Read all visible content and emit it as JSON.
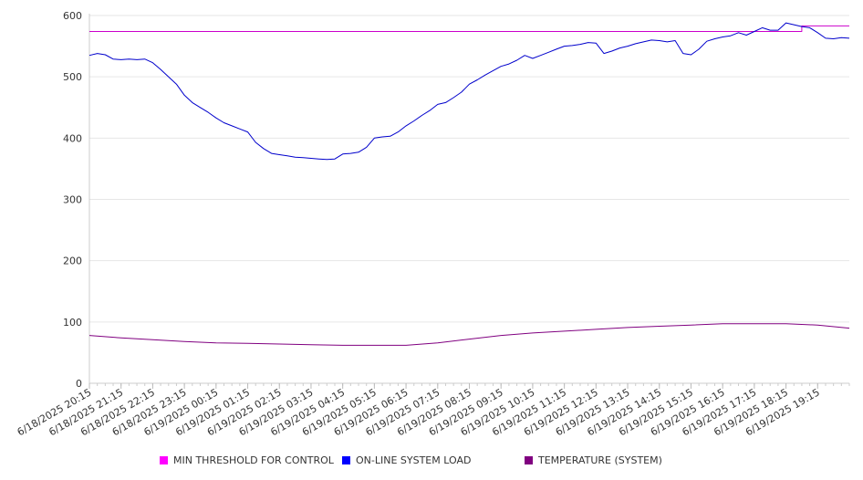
{
  "chart_data": {
    "type": "line",
    "title": "",
    "xlabel": "",
    "ylabel": "",
    "ylim": [
      0,
      600
    ],
    "y_ticks": [
      0,
      100,
      200,
      300,
      400,
      500,
      600
    ],
    "grid": "horizontal",
    "x_tick_labels": [
      "6/18/2025 20:15",
      "6/18/2025 21:15",
      "6/18/2025 22:15",
      "6/18/2025 23:15",
      "6/19/2025 00:15",
      "6/19/2025 01:15",
      "6/19/2025 02:15",
      "6/19/2025 03:15",
      "6/19/2025 04:15",
      "6/19/2025 05:15",
      "6/19/2025 06:15",
      "6/19/2025 07:15",
      "6/19/2025 08:15",
      "6/19/2025 09:15",
      "6/19/2025 10:15",
      "6/19/2025 11:15",
      "6/19/2025 12:15",
      "6/19/2025 13:15",
      "6/19/2025 14:15",
      "6/19/2025 15:15",
      "6/19/2025 16:15",
      "6/19/2025 17:15",
      "6/19/2025 18:15",
      "6/19/2025 19:15"
    ],
    "x_range": [
      "6/18/2025 20:15",
      "6/19/2025 20:15"
    ],
    "legend_position": "bottom",
    "series": [
      {
        "name": "MIN THRESHOLD FOR CONTROL",
        "color": "#cc00cc",
        "points": [
          {
            "x": "6/18/2025 20:15",
            "y": 574
          },
          {
            "x": "6/19/2025 18:45",
            "y": 574
          },
          {
            "x": "6/19/2025 18:45",
            "y": 583
          },
          {
            "x": "6/19/2025 20:15",
            "y": 583
          }
        ]
      },
      {
        "name": "ON-LINE SYSTEM LOAD",
        "color": "#0000cc",
        "points": [
          {
            "x": "6/18/2025 20:15",
            "y": 535
          },
          {
            "x": "6/18/2025 20:30",
            "y": 538
          },
          {
            "x": "6/18/2025 20:45",
            "y": 536
          },
          {
            "x": "6/18/2025 21:00",
            "y": 529
          },
          {
            "x": "6/18/2025 21:15",
            "y": 528
          },
          {
            "x": "6/18/2025 21:30",
            "y": 529
          },
          {
            "x": "6/18/2025 21:45",
            "y": 528
          },
          {
            "x": "6/18/2025 22:00",
            "y": 529
          },
          {
            "x": "6/18/2025 22:15",
            "y": 523
          },
          {
            "x": "6/18/2025 22:30",
            "y": 512
          },
          {
            "x": "6/18/2025 22:45",
            "y": 500
          },
          {
            "x": "6/18/2025 23:00",
            "y": 488
          },
          {
            "x": "6/18/2025 23:15",
            "y": 470
          },
          {
            "x": "6/18/2025 23:30",
            "y": 458
          },
          {
            "x": "6/18/2025 23:45",
            "y": 450
          },
          {
            "x": "6/19/2025 00:00",
            "y": 442
          },
          {
            "x": "6/19/2025 00:15",
            "y": 433
          },
          {
            "x": "6/19/2025 00:30",
            "y": 425
          },
          {
            "x": "6/19/2025 00:45",
            "y": 420
          },
          {
            "x": "6/19/2025 01:00",
            "y": 415
          },
          {
            "x": "6/19/2025 01:15",
            "y": 410
          },
          {
            "x": "6/19/2025 01:30",
            "y": 393
          },
          {
            "x": "6/19/2025 01:45",
            "y": 383
          },
          {
            "x": "6/19/2025 02:00",
            "y": 375
          },
          {
            "x": "6/19/2025 02:15",
            "y": 373
          },
          {
            "x": "6/19/2025 02:30",
            "y": 371
          },
          {
            "x": "6/19/2025 02:45",
            "y": 369
          },
          {
            "x": "6/19/2025 03:00",
            "y": 368
          },
          {
            "x": "6/19/2025 03:15",
            "y": 367
          },
          {
            "x": "6/19/2025 03:30",
            "y": 366
          },
          {
            "x": "6/19/2025 03:45",
            "y": 365
          },
          {
            "x": "6/19/2025 04:00",
            "y": 366
          },
          {
            "x": "6/19/2025 04:15",
            "y": 374
          },
          {
            "x": "6/19/2025 04:30",
            "y": 375
          },
          {
            "x": "6/19/2025 04:45",
            "y": 377
          },
          {
            "x": "6/19/2025 05:00",
            "y": 385
          },
          {
            "x": "6/19/2025 05:15",
            "y": 400
          },
          {
            "x": "6/19/2025 05:30",
            "y": 402
          },
          {
            "x": "6/19/2025 05:45",
            "y": 403
          },
          {
            "x": "6/19/2025 06:00",
            "y": 410
          },
          {
            "x": "6/19/2025 06:15",
            "y": 420
          },
          {
            "x": "6/19/2025 06:30",
            "y": 428
          },
          {
            "x": "6/19/2025 06:45",
            "y": 437
          },
          {
            "x": "6/19/2025 07:00",
            "y": 445
          },
          {
            "x": "6/19/2025 07:15",
            "y": 455
          },
          {
            "x": "6/19/2025 07:30",
            "y": 458
          },
          {
            "x": "6/19/2025 07:45",
            "y": 466
          },
          {
            "x": "6/19/2025 08:00",
            "y": 475
          },
          {
            "x": "6/19/2025 08:15",
            "y": 488
          },
          {
            "x": "6/19/2025 08:30",
            "y": 495
          },
          {
            "x": "6/19/2025 08:45",
            "y": 503
          },
          {
            "x": "6/19/2025 09:00",
            "y": 510
          },
          {
            "x": "6/19/2025 09:15",
            "y": 517
          },
          {
            "x": "6/19/2025 09:30",
            "y": 521
          },
          {
            "x": "6/19/2025 09:45",
            "y": 527
          },
          {
            "x": "6/19/2025 10:00",
            "y": 535
          },
          {
            "x": "6/19/2025 10:15",
            "y": 530
          },
          {
            "x": "6/19/2025 10:30",
            "y": 535
          },
          {
            "x": "6/19/2025 10:45",
            "y": 540
          },
          {
            "x": "6/19/2025 11:00",
            "y": 545
          },
          {
            "x": "6/19/2025 11:15",
            "y": 550
          },
          {
            "x": "6/19/2025 11:30",
            "y": 551
          },
          {
            "x": "6/19/2025 11:45",
            "y": 553
          },
          {
            "x": "6/19/2025 12:00",
            "y": 556
          },
          {
            "x": "6/19/2025 12:15",
            "y": 555
          },
          {
            "x": "6/19/2025 12:30",
            "y": 538
          },
          {
            "x": "6/19/2025 12:45",
            "y": 542
          },
          {
            "x": "6/19/2025 13:00",
            "y": 547
          },
          {
            "x": "6/19/2025 13:15",
            "y": 550
          },
          {
            "x": "6/19/2025 13:30",
            "y": 554
          },
          {
            "x": "6/19/2025 13:45",
            "y": 557
          },
          {
            "x": "6/19/2025 14:00",
            "y": 560
          },
          {
            "x": "6/19/2025 14:15",
            "y": 559
          },
          {
            "x": "6/19/2025 14:30",
            "y": 557
          },
          {
            "x": "6/19/2025 14:45",
            "y": 559
          },
          {
            "x": "6/19/2025 15:00",
            "y": 538
          },
          {
            "x": "6/19/2025 15:15",
            "y": 536
          },
          {
            "x": "6/19/2025 15:30",
            "y": 545
          },
          {
            "x": "6/19/2025 15:45",
            "y": 558
          },
          {
            "x": "6/19/2025 16:00",
            "y": 562
          },
          {
            "x": "6/19/2025 16:15",
            "y": 565
          },
          {
            "x": "6/19/2025 16:30",
            "y": 567
          },
          {
            "x": "6/19/2025 16:45",
            "y": 572
          },
          {
            "x": "6/19/2025 17:00",
            "y": 568
          },
          {
            "x": "6/19/2025 17:15",
            "y": 574
          },
          {
            "x": "6/19/2025 17:30",
            "y": 580
          },
          {
            "x": "6/19/2025 17:45",
            "y": 576
          },
          {
            "x": "6/19/2025 18:00",
            "y": 576
          },
          {
            "x": "6/19/2025 18:15",
            "y": 588
          },
          {
            "x": "6/19/2025 18:30",
            "y": 585
          },
          {
            "x": "6/19/2025 18:45",
            "y": 582
          },
          {
            "x": "6/19/2025 19:00",
            "y": 580
          },
          {
            "x": "6/19/2025 19:15",
            "y": 572
          },
          {
            "x": "6/19/2025 19:30",
            "y": 563
          },
          {
            "x": "6/19/2025 19:45",
            "y": 562
          },
          {
            "x": "6/19/2025 20:00",
            "y": 564
          },
          {
            "x": "6/19/2025 20:15",
            "y": 563
          }
        ]
      },
      {
        "name": "TEMPERATURE (SYSTEM)",
        "color": "#800080",
        "points": [
          {
            "x": "6/18/2025 20:15",
            "y": 78
          },
          {
            "x": "6/18/2025 21:15",
            "y": 74
          },
          {
            "x": "6/18/2025 22:15",
            "y": 71
          },
          {
            "x": "6/18/2025 23:15",
            "y": 68
          },
          {
            "x": "6/19/2025 00:15",
            "y": 66
          },
          {
            "x": "6/19/2025 01:15",
            "y": 65
          },
          {
            "x": "6/19/2025 02:15",
            "y": 64
          },
          {
            "x": "6/19/2025 03:15",
            "y": 63
          },
          {
            "x": "6/19/2025 04:15",
            "y": 62
          },
          {
            "x": "6/19/2025 05:15",
            "y": 62
          },
          {
            "x": "6/19/2025 06:15",
            "y": 62
          },
          {
            "x": "6/19/2025 07:15",
            "y": 66
          },
          {
            "x": "6/19/2025 08:15",
            "y": 72
          },
          {
            "x": "6/19/2025 09:15",
            "y": 78
          },
          {
            "x": "6/19/2025 10:15",
            "y": 82
          },
          {
            "x": "6/19/2025 11:15",
            "y": 85
          },
          {
            "x": "6/19/2025 12:15",
            "y": 88
          },
          {
            "x": "6/19/2025 13:15",
            "y": 91
          },
          {
            "x": "6/19/2025 14:15",
            "y": 93
          },
          {
            "x": "6/19/2025 15:15",
            "y": 95
          },
          {
            "x": "6/19/2025 16:15",
            "y": 97
          },
          {
            "x": "6/19/2025 17:15",
            "y": 97
          },
          {
            "x": "6/19/2025 18:15",
            "y": 97
          },
          {
            "x": "6/19/2025 19:15",
            "y": 95
          },
          {
            "x": "6/19/2025 20:15",
            "y": 90
          }
        ]
      }
    ]
  },
  "legend": {
    "items": [
      {
        "label": "MIN THRESHOLD FOR CONTROL",
        "color": "#ff00ff"
      },
      {
        "label": "ON-LINE SYSTEM LOAD",
        "color": "#0000ff"
      },
      {
        "label": "TEMPERATURE (SYSTEM)",
        "color": "#800080"
      }
    ]
  }
}
